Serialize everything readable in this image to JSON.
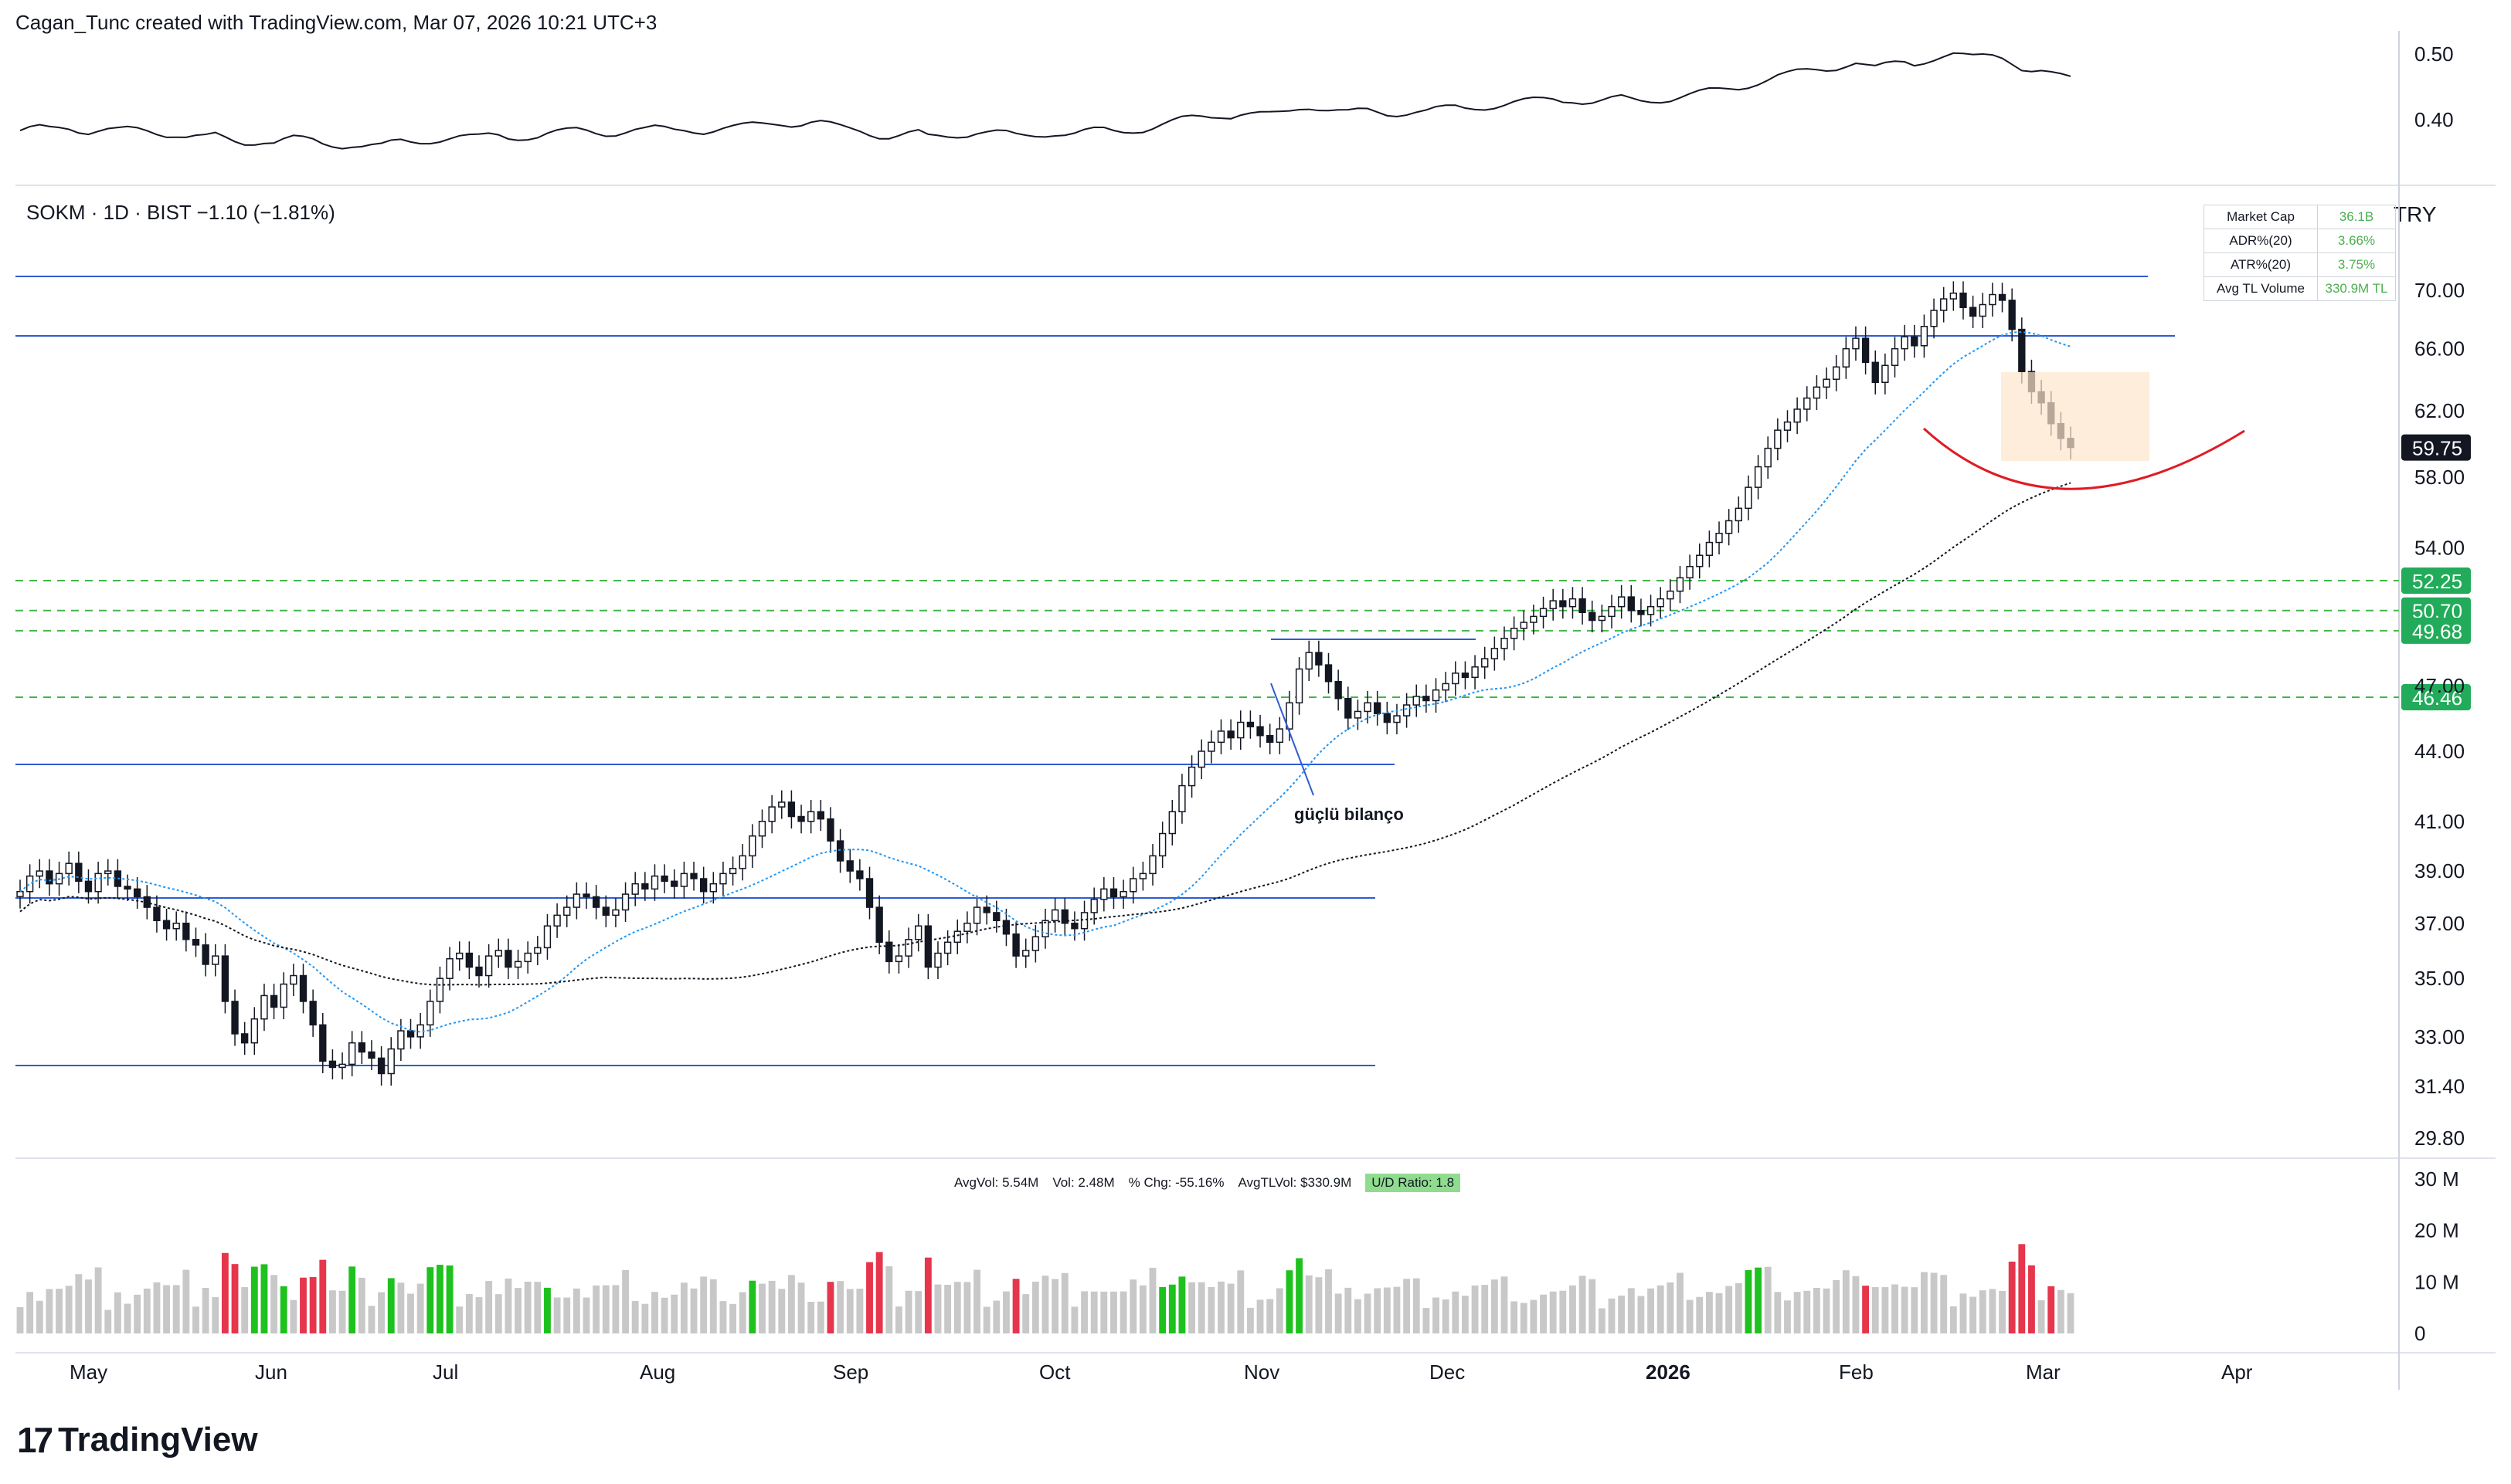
{
  "header": {
    "credit": "Cagan_Tunc created with TradingView.com, Mar 07, 2026 10:21 UTC+3"
  },
  "symbol_line": {
    "text": "SOKM · 1D · BIST  −1.10 (−1.81%)"
  },
  "currency": "TRY",
  "brand": {
    "logo": "17",
    "name": "TradingView"
  },
  "metrics_table": [
    {
      "key": "Market Cap",
      "value": "36.1B"
    },
    {
      "key": "ADR%(20)",
      "value": "3.66%"
    },
    {
      "key": "ATR%(20)",
      "value": "3.75%"
    },
    {
      "key": "Avg TL Volume",
      "value": "330.9M TL"
    }
  ],
  "volume_stats": {
    "avgvol": "AvgVol: 5.54M",
    "vol": "Vol: 2.48M",
    "pct": "% Chg: -55.16%",
    "avgtl": "AvgTLVol: $330.9M",
    "ud": "U/D Ratio: 1.8"
  },
  "annotation": {
    "text": "güçlü bilanço"
  },
  "colors": {
    "up": "#1fc11f",
    "down": "#e5364c",
    "neutral_vol": "#c8c8c8",
    "blue_line": "#2f5bd3",
    "green_dash": "#43b649",
    "red_arc": "#e01b24",
    "price_badge": "#131722",
    "level_badge": "#22ab5a"
  },
  "chart_data": [
    {
      "type": "line",
      "title": "",
      "y_axis": {
        "ticks": [
          "0.50",
          "0.40"
        ],
        "range": [
          0.32,
          0.54
        ]
      },
      "note": "relative strength line"
    },
    {
      "type": "candlestick",
      "title": "SOKM · 1D · BIST",
      "x_ticks": [
        "May",
        "Jun",
        "Jul",
        "Aug",
        "Sep",
        "Oct",
        "Nov",
        "Dec",
        "2026",
        "Feb",
        "Mar",
        "Apr"
      ],
      "y_ticks": [
        "70.00",
        "66.00",
        "62.00",
        "58.00",
        "54.00",
        "47.00",
        "44.00",
        "41.00",
        "39.00",
        "37.00",
        "35.00",
        "33.00",
        "31.40",
        "29.80"
      ],
      "y_scale": "log",
      "last_price": "59.75",
      "levels": [
        {
          "label": "52.25",
          "value": 52.25
        },
        {
          "label": "50.70",
          "value": 50.7
        },
        {
          "label": "49.68",
          "value": 49.68
        },
        {
          "label": "46.46",
          "value": 46.46
        }
      ],
      "closes": [
        38.2,
        38.8,
        39.0,
        38.5,
        38.9,
        39.3,
        38.6,
        38.2,
        38.9,
        39.0,
        38.4,
        38.3,
        38.0,
        37.6,
        37.1,
        36.8,
        37.0,
        36.4,
        36.2,
        35.5,
        35.8,
        34.2,
        33.1,
        32.8,
        33.6,
        34.4,
        34.0,
        34.8,
        35.1,
        34.2,
        33.4,
        32.2,
        32.0,
        32.1,
        32.8,
        32.5,
        32.3,
        31.8,
        32.6,
        33.2,
        33.0,
        33.4,
        34.2,
        35.0,
        35.7,
        35.9,
        35.4,
        35.1,
        35.8,
        36.0,
        35.4,
        35.6,
        35.9,
        36.1,
        36.9,
        37.3,
        37.6,
        38.1,
        38.0,
        37.6,
        37.3,
        37.5,
        38.1,
        38.5,
        38.3,
        38.8,
        38.6,
        38.4,
        38.9,
        38.7,
        38.2,
        38.5,
        38.9,
        39.1,
        39.6,
        40.4,
        41.0,
        41.6,
        41.8,
        41.2,
        41.0,
        41.4,
        41.1,
        40.2,
        39.4,
        39.0,
        38.7,
        37.6,
        36.3,
        35.6,
        35.8,
        36.4,
        36.9,
        35.4,
        35.9,
        36.3,
        36.7,
        37.0,
        37.6,
        37.4,
        37.1,
        36.6,
        35.8,
        36.0,
        36.5,
        37.1,
        37.5,
        37.0,
        36.8,
        37.4,
        37.9,
        38.3,
        38.0,
        38.2,
        38.7,
        38.9,
        39.6,
        40.5,
        41.4,
        42.5,
        43.3,
        44.0,
        44.4,
        44.9,
        44.6,
        45.3,
        45.1,
        44.7,
        44.4,
        45.0,
        46.2,
        47.8,
        48.6,
        48.0,
        47.2,
        46.4,
        45.5,
        45.8,
        46.2,
        45.7,
        45.3,
        45.6,
        46.1,
        46.5,
        46.3,
        46.8,
        47.1,
        47.6,
        47.4,
        47.9,
        48.3,
        48.8,
        49.3,
        49.8,
        50.1,
        50.4,
        50.8,
        51.2,
        50.9,
        51.3,
        50.6,
        50.2,
        50.4,
        50.9,
        51.4,
        50.7,
        50.5,
        50.9,
        51.3,
        51.7,
        52.4,
        53.0,
        53.6,
        54.3,
        54.8,
        55.5,
        56.2,
        57.4,
        58.6,
        59.7,
        60.8,
        61.3,
        62.1,
        62.8,
        63.5,
        64.0,
        64.8,
        66.0,
        66.7,
        65.1,
        63.8,
        64.9,
        66.0,
        66.8,
        66.2,
        67.5,
        68.6,
        69.4,
        69.8,
        68.8,
        68.2,
        69.0,
        69.7,
        69.3,
        67.3,
        64.5,
        63.2,
        62.5,
        61.2,
        60.3,
        59.75
      ]
    },
    {
      "type": "bar",
      "title": "",
      "y_ticks": [
        "30 M",
        "20 M",
        "10 M",
        "0"
      ],
      "ylim": [
        0,
        30
      ]
    }
  ]
}
